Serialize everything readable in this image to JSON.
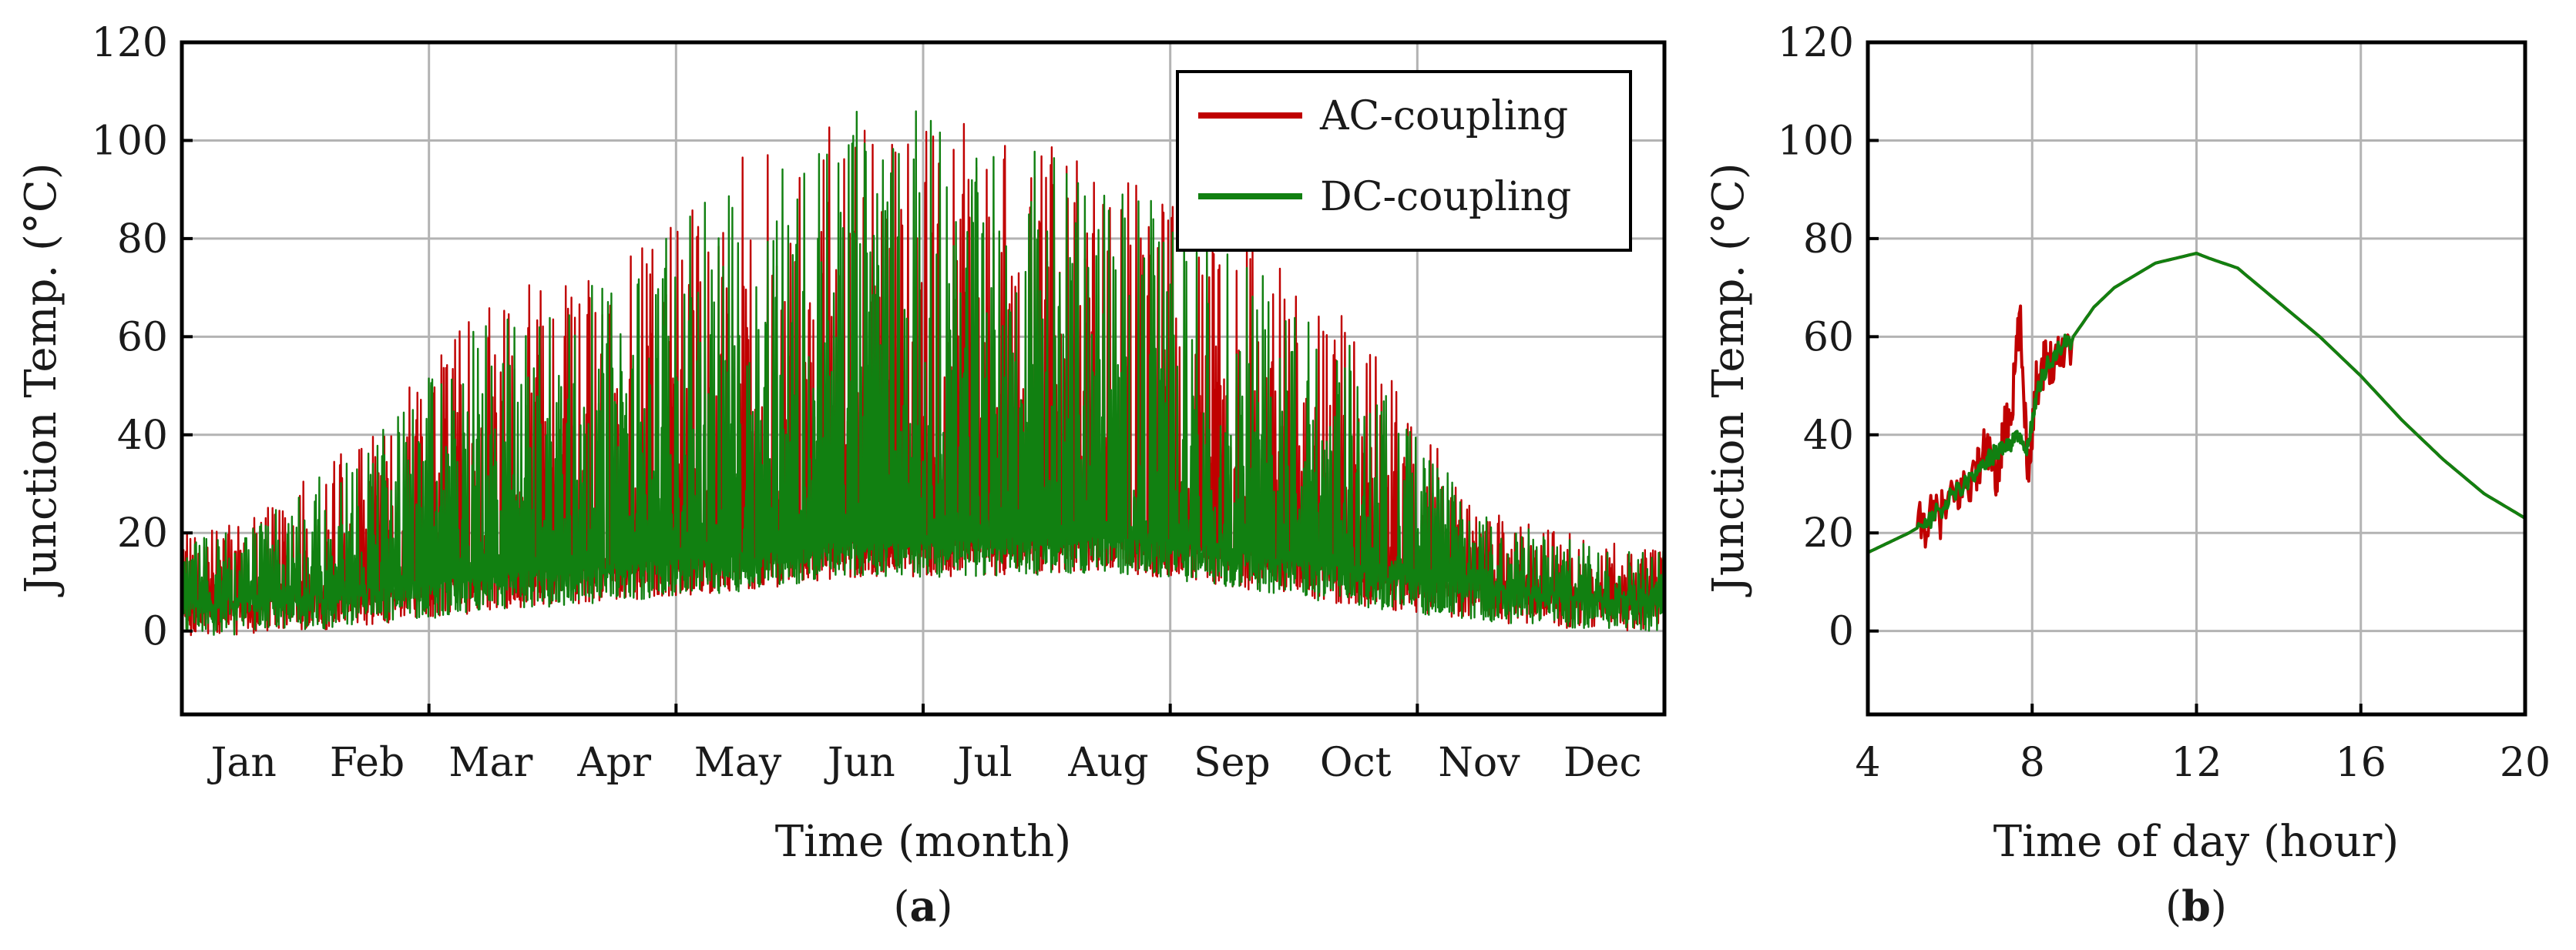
{
  "chart_data": [
    {
      "panel_label": "a",
      "type": "line",
      "xlabel": "Time (month)",
      "ylabel": "Junction Temp. (°C)",
      "x_unit": "month",
      "xlim": [
        0,
        12
      ],
      "ylim": [
        -17,
        120
      ],
      "yticks": [
        0,
        20,
        40,
        60,
        80,
        100,
        120
      ],
      "x_tick_labels": [
        "Jan",
        "Feb",
        "Mar",
        "Apr",
        "May",
        "Jun",
        "Jul",
        "Aug",
        "Sep",
        "Oct",
        "Nov",
        "Dec"
      ],
      "grid": true,
      "legend": {
        "position": "top-right",
        "entries": [
          "AC-coupling",
          "DC-coupling"
        ]
      },
      "series": [
        {
          "name": "AC-coupling",
          "color": "#c00000",
          "monthly_baseline": [
            5,
            7,
            10,
            12,
            14,
            17,
            17,
            18,
            15,
            11,
            8,
            6
          ],
          "monthly_peak": [
            22,
            42,
            70,
            74,
            98,
            106,
            103,
            96,
            82,
            62,
            25,
            18
          ]
        },
        {
          "name": "DC-coupling",
          "color": "#118011",
          "monthly_baseline": [
            5,
            7,
            10,
            12,
            14,
            17,
            17,
            18,
            15,
            11,
            8,
            6
          ],
          "monthly_peak": [
            20,
            40,
            65,
            72,
            93,
            108,
            104,
            93,
            78,
            58,
            24,
            17
          ]
        }
      ]
    },
    {
      "panel_label": "b",
      "type": "line",
      "xlabel": "Time of day (hour)",
      "ylabel": "Junction Temp. (°C)",
      "xlim": [
        4,
        20
      ],
      "ylim": [
        -17,
        120
      ],
      "xticks": [
        4,
        8,
        12,
        16,
        20
      ],
      "yticks": [
        0,
        20,
        40,
        60,
        80,
        100,
        120
      ],
      "grid": true,
      "series": [
        {
          "name": "AC-coupling",
          "color": "#c00000",
          "x": [
            4,
            4.5,
            5,
            5.4,
            5.8,
            6.2,
            6.6,
            6.9,
            7.1,
            7.3,
            7.5,
            7.7,
            7.9,
            8.1,
            8.3,
            8.6,
            9,
            9.5,
            10,
            11,
            12,
            12.3,
            13,
            14,
            15,
            16,
            17,
            18,
            19,
            20
          ],
          "y": [
            16,
            18,
            20,
            22,
            24,
            28,
            32,
            38,
            30,
            40,
            45,
            64,
            33,
            50,
            55,
            56,
            60,
            66,
            70,
            75,
            77,
            76,
            74,
            67,
            60,
            52,
            43,
            35,
            28,
            23
          ]
        },
        {
          "name": "DC-coupling",
          "color": "#118011",
          "x": [
            4,
            4.5,
            5,
            5.4,
            5.8,
            6.2,
            6.6,
            6.9,
            7.1,
            7.3,
            7.5,
            7.7,
            7.9,
            8.1,
            8.3,
            8.6,
            9,
            9.5,
            10,
            11,
            12,
            12.3,
            13,
            14,
            15,
            16,
            17,
            18,
            19,
            20
          ],
          "y": [
            16,
            18,
            20,
            22,
            25,
            29,
            32,
            35,
            36,
            37,
            38,
            40,
            37,
            48,
            53,
            57,
            60,
            66,
            70,
            75,
            77,
            76,
            74,
            67,
            60,
            52,
            43,
            35,
            28,
            23
          ]
        }
      ]
    }
  ]
}
